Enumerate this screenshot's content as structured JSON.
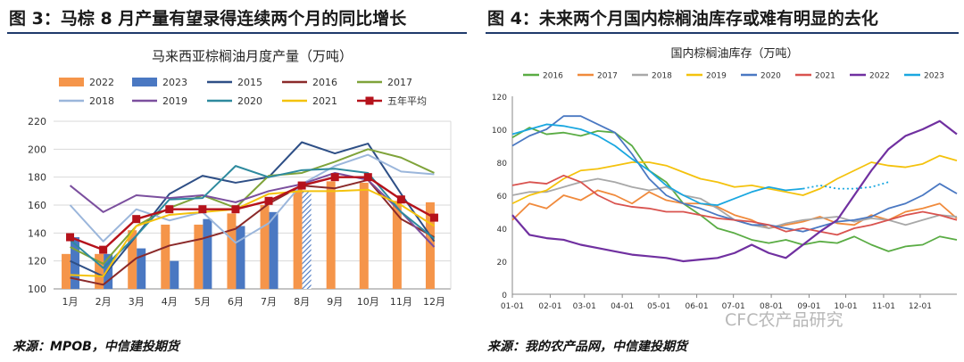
{
  "figures": [
    {
      "title": "图 3：马棕 8 月产量有望录得连续两个月的同比增长",
      "source": "来源：MPOB，中信建投期货"
    },
    {
      "title": "图 4：未来两个月国内棕榈油库存或难有明显的去化",
      "source": "来源：我的农产品网，中信建投期货"
    }
  ],
  "watermark": "CFC农产品研究",
  "chart_data": [
    {
      "type": "bar+line",
      "title": "马来西亚棕榈油月度产量（万吨）",
      "categories": [
        "1月",
        "2月",
        "3月",
        "4月",
        "5月",
        "6月",
        "7月",
        "8月",
        "9月",
        "10月",
        "11月",
        "12月"
      ],
      "ylim": [
        100,
        220
      ],
      "yticks": [
        100,
        120,
        140,
        160,
        180,
        200,
        220
      ],
      "bars": [
        {
          "name": "2022",
          "color": "#f5954a",
          "values": [
            125,
            125,
            142,
            146,
            146,
            154,
            160,
            172,
            177,
            176,
            163,
            162
          ]
        },
        {
          "name": "2023",
          "color": "#4a78c2",
          "values": [
            137,
            125,
            129,
            120,
            150,
            145,
            155,
            170
          ]
        }
      ],
      "hatched_bar": {
        "category": "8月",
        "series": "2023"
      },
      "lines": [
        {
          "name": "2015",
          "color": "#2e4f86",
          "values": [
            120,
            109,
            138,
            168,
            181,
            176,
            180,
            205,
            197,
            204,
            168,
            134
          ]
        },
        {
          "name": "2016",
          "color": "#8b2a2a",
          "values": [
            108,
            103,
            122,
            131,
            136,
            143,
            161,
            174,
            172,
            178,
            150,
            137
          ]
        },
        {
          "name": "2017",
          "color": "#7fa33a",
          "values": [
            130,
            118,
            145,
            158,
            167,
            158,
            181,
            183,
            191,
            200,
            194,
            183
          ]
        },
        {
          "name": "2018",
          "color": "#9bb6db",
          "values": [
            160,
            134,
            157,
            149,
            155,
            133,
            147,
            175,
            188,
            196,
            184,
            182
          ]
        },
        {
          "name": "2019",
          "color": "#7b4f9e",
          "values": [
            174,
            155,
            167,
            165,
            167,
            162,
            170,
            175,
            183,
            178,
            155,
            130
          ]
        },
        {
          "name": "2020",
          "color": "#2e8a9e",
          "values": [
            135,
            115,
            138,
            164,
            165,
            188,
            180,
            185,
            186,
            183,
            155,
            136
          ]
        },
        {
          "name": "2021",
          "color": "#f4c20d",
          "values": [
            110,
            109,
            145,
            153,
            155,
            157,
            168,
            170,
            170,
            171,
            160,
            145
          ]
        },
        {
          "name": "五年平均",
          "color": "#b5121b",
          "marker": "square",
          "values": [
            137,
            128,
            150,
            157,
            157,
            157,
            163,
            174,
            180,
            180,
            164,
            151
          ]
        }
      ],
      "legend": [
        "2022",
        "2023",
        "2015",
        "2016",
        "2017",
        "2018",
        "2019",
        "2020",
        "2021",
        "五年平均"
      ]
    },
    {
      "type": "line",
      "title": "国内棕榈油库存（万吨）",
      "ylim": [
        0,
        120
      ],
      "yticks": [
        0,
        20,
        40,
        60,
        80,
        100,
        120
      ],
      "xlim": [
        0,
        52
      ],
      "xticks": [
        "01-01",
        "02-01",
        "03-01",
        "04-01",
        "05-01",
        "06-01",
        "07-01",
        "08-01",
        "09-01",
        "10-01",
        "11-01",
        "12-01"
      ],
      "xtick_weeks": [
        0,
        4.43,
        8.43,
        12.86,
        17.14,
        21.57,
        25.86,
        30.29,
        34.71,
        39,
        43.43,
        47.71
      ],
      "series": [
        {
          "name": "2016",
          "color": "#5aac44",
          "x": [
            0,
            2,
            4,
            6,
            8,
            10,
            12,
            14,
            16,
            18,
            20,
            22,
            24,
            26,
            28,
            30,
            32,
            34,
            36,
            38,
            40,
            42,
            44,
            46,
            48,
            50,
            52
          ],
          "y": [
            95,
            101,
            97,
            98,
            96,
            99,
            98,
            90,
            75,
            68,
            55,
            48,
            40,
            37,
            33,
            31,
            33,
            30,
            32,
            31,
            35,
            30,
            26,
            29,
            30,
            35,
            33
          ]
        },
        {
          "name": "2017",
          "color": "#f08a3c",
          "x": [
            0,
            2,
            4,
            6,
            8,
            10,
            12,
            14,
            16,
            18,
            20,
            22,
            24,
            26,
            28,
            30,
            32,
            34,
            36,
            38,
            40,
            42,
            44,
            46,
            48,
            50,
            52
          ],
          "y": [
            45,
            55,
            52,
            60,
            57,
            63,
            60,
            55,
            62,
            57,
            55,
            55,
            53,
            48,
            45,
            40,
            42,
            44,
            47,
            43,
            42,
            48,
            45,
            50,
            52,
            55,
            46
          ]
        },
        {
          "name": "2018",
          "color": "#a8a8a8",
          "x": [
            0,
            2,
            4,
            6,
            8,
            10,
            12,
            14,
            16,
            18,
            20,
            22,
            24,
            26,
            28,
            30,
            32,
            34,
            36,
            38,
            40,
            42,
            44,
            46,
            48,
            50,
            52
          ],
          "y": [
            60,
            62,
            62,
            65,
            68,
            70,
            68,
            65,
            63,
            65,
            60,
            58,
            52,
            45,
            42,
            40,
            43,
            45,
            46,
            47,
            44,
            46,
            45,
            42,
            45,
            48,
            47
          ]
        },
        {
          "name": "2019",
          "color": "#f4c20d",
          "x": [
            0,
            2,
            4,
            6,
            8,
            10,
            12,
            14,
            16,
            18,
            20,
            22,
            24,
            26,
            28,
            30,
            32,
            34,
            36,
            38,
            40,
            42,
            44,
            46,
            48,
            50,
            52
          ],
          "y": [
            55,
            60,
            63,
            70,
            75,
            76,
            78,
            80,
            80,
            78,
            74,
            70,
            68,
            65,
            66,
            64,
            62,
            60,
            64,
            70,
            75,
            80,
            78,
            77,
            79,
            84,
            81
          ]
        },
        {
          "name": "2020",
          "color": "#4a78c2",
          "x": [
            0,
            2,
            4,
            6,
            8,
            10,
            12,
            14,
            16,
            18,
            20,
            22,
            24,
            26,
            28,
            30,
            32,
            34,
            36,
            38,
            40,
            42,
            44,
            46,
            48,
            50,
            52
          ],
          "y": [
            90,
            96,
            100,
            108,
            108,
            103,
            98,
            85,
            70,
            60,
            55,
            52,
            48,
            45,
            42,
            42,
            40,
            38,
            41,
            44,
            45,
            47,
            52,
            55,
            60,
            67,
            61
          ]
        },
        {
          "name": "2021",
          "color": "#d9534f",
          "x": [
            0,
            2,
            4,
            6,
            8,
            10,
            12,
            14,
            16,
            18,
            20,
            22,
            24,
            26,
            28,
            30,
            32,
            34,
            36,
            38,
            40,
            42,
            44,
            46,
            48,
            50,
            52
          ],
          "y": [
            66,
            68,
            67,
            72,
            68,
            60,
            55,
            53,
            52,
            50,
            50,
            48,
            46,
            45,
            44,
            42,
            38,
            40,
            38,
            36,
            40,
            42,
            45,
            48,
            50,
            48,
            45
          ]
        },
        {
          "name": "2022",
          "color": "#7030a0",
          "x": [
            0,
            2,
            4,
            6,
            8,
            10,
            12,
            14,
            16,
            18,
            20,
            22,
            24,
            26,
            28,
            30,
            32,
            34,
            36,
            38,
            40,
            42,
            44,
            46,
            48,
            50,
            52
          ],
          "y": [
            48,
            36,
            34,
            33,
            30,
            28,
            26,
            24,
            23,
            22,
            20,
            21,
            22,
            25,
            30,
            25,
            22,
            30,
            38,
            45,
            60,
            75,
            88,
            96,
            100,
            105,
            97
          ]
        },
        {
          "name": "2023",
          "color": "#1aa7e0",
          "x": [
            0,
            2,
            4,
            6,
            8,
            10,
            12,
            14,
            16,
            18,
            20,
            22,
            24,
            26,
            28,
            30,
            32,
            34
          ],
          "y": [
            97,
            100,
            103,
            102,
            100,
            96,
            90,
            82,
            75,
            66,
            60,
            55,
            54,
            58,
            62,
            65,
            63,
            64
          ]
        },
        {
          "name": "2023 (预测)",
          "color": "#1aa7e0",
          "dashed": true,
          "x": [
            34,
            36,
            38,
            40,
            42,
            44
          ],
          "y": [
            64,
            66,
            64,
            64,
            65,
            68
          ]
        }
      ],
      "legend": [
        "2016",
        "2017",
        "2018",
        "2019",
        "2020",
        "2021",
        "2022",
        "2023"
      ]
    }
  ]
}
